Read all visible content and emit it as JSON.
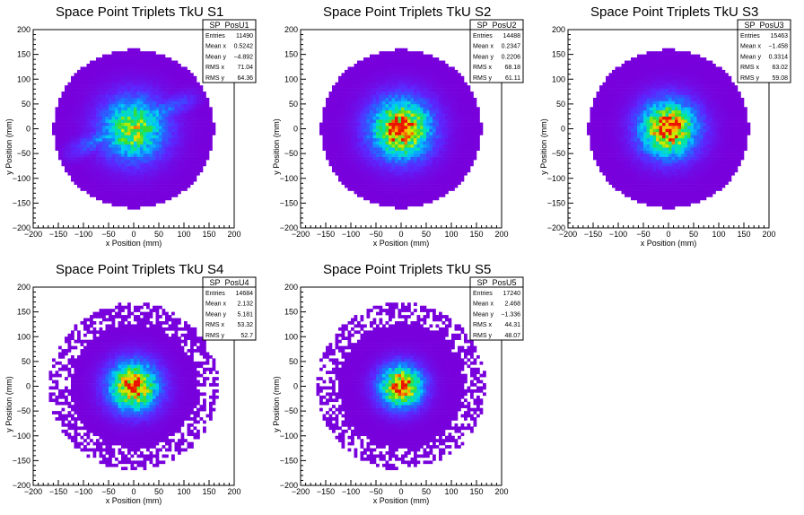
{
  "chart_data": [
    {
      "type": "heatmap",
      "title": "Space Point Triplets TkU S1",
      "xlabel": "x Position (mm)",
      "ylabel": "y Position (mm)",
      "xlim": [
        -200,
        200
      ],
      "ylim": [
        -200,
        200
      ],
      "xticks": [
        "−200",
        "−150",
        "−100",
        "−50",
        "0",
        "50",
        "100",
        "150",
        "200"
      ],
      "yticks": [
        "200",
        "150",
        "100",
        "50",
        "0",
        "−50",
        "−100",
        "−150",
        "−200"
      ],
      "distribution": {
        "radius": 160,
        "sx": 71.04,
        "sy": 64.36,
        "band": true
      },
      "stats": {
        "name": "SP_PosU1",
        "rows": [
          {
            "label": "Entries",
            "value": "11490"
          },
          {
            "label": "Mean x",
            "value": "0.5242"
          },
          {
            "label": "Mean y",
            "value": "−4.892"
          },
          {
            "label": "RMS x",
            "value": "71.04"
          },
          {
            "label": "RMS y",
            "value": "64.36"
          }
        ]
      }
    },
    {
      "type": "heatmap",
      "title": "Space Point Triplets TkU S2",
      "xlabel": "x Position (mm)",
      "ylabel": "y Position (mm)",
      "xlim": [
        -200,
        200
      ],
      "ylim": [
        -200,
        200
      ],
      "xticks": [
        "−200",
        "−150",
        "−100",
        "−50",
        "0",
        "50",
        "100",
        "150",
        "200"
      ],
      "yticks": [
        "200",
        "150",
        "100",
        "50",
        "0",
        "−50",
        "−100",
        "−150",
        "−200"
      ],
      "distribution": {
        "radius": 160,
        "sx": 68.18,
        "sy": 61.11,
        "band": false
      },
      "stats": {
        "name": "SP_PosU2",
        "rows": [
          {
            "label": "Entries",
            "value": "14488"
          },
          {
            "label": "Mean x",
            "value": "0.2347"
          },
          {
            "label": "Mean y",
            "value": "0.2206"
          },
          {
            "label": "RMS x",
            "value": "68.18"
          },
          {
            "label": "RMS y",
            "value": "61.11"
          }
        ]
      }
    },
    {
      "type": "heatmap",
      "title": "Space Point Triplets TkU S3",
      "xlabel": "x Position (mm)",
      "ylabel": "y Position (mm)",
      "xlim": [
        -200,
        200
      ],
      "ylim": [
        -200,
        200
      ],
      "xticks": [
        "−200",
        "−150",
        "−100",
        "−50",
        "0",
        "50",
        "100",
        "150",
        "200"
      ],
      "yticks": [
        "200",
        "150",
        "100",
        "50",
        "0",
        "−50",
        "−100",
        "−150",
        "−200"
      ],
      "distribution": {
        "radius": 160,
        "sx": 63.02,
        "sy": 59.08,
        "band": false
      },
      "stats": {
        "name": "SP_PosU3",
        "rows": [
          {
            "label": "Entries",
            "value": "15463"
          },
          {
            "label": "Mean x",
            "value": "−1.458"
          },
          {
            "label": "Mean y",
            "value": "0.3314"
          },
          {
            "label": "RMS x",
            "value": "63.02"
          },
          {
            "label": "RMS y",
            "value": "59.08"
          }
        ]
      }
    },
    {
      "type": "heatmap",
      "title": "Space Point Triplets TkU S4",
      "xlabel": "x Position (mm)",
      "ylabel": "y Position (mm)",
      "xlim": [
        -200,
        200
      ],
      "ylim": [
        -200,
        200
      ],
      "xticks": [
        "−200",
        "−150",
        "−100",
        "−50",
        "0",
        "50",
        "100",
        "150",
        "200"
      ],
      "yticks": [
        "200",
        "150",
        "100",
        "50",
        "0",
        "−50",
        "−100",
        "−150",
        "−200"
      ],
      "distribution": {
        "radius": 160,
        "sx": 53.32,
        "sy": 52.7,
        "band": false
      },
      "stats": {
        "name": "SP_PosU4",
        "rows": [
          {
            "label": "Entries",
            "value": "14684"
          },
          {
            "label": "Mean x",
            "value": "2.132"
          },
          {
            "label": "Mean y",
            "value": "5.181"
          },
          {
            "label": "RMS x",
            "value": "53.32"
          },
          {
            "label": "RMS y",
            "value": "52.7"
          }
        ]
      }
    },
    {
      "type": "heatmap",
      "title": "Space Point Triplets TkU S5",
      "xlabel": "x Position (mm)",
      "ylabel": "y Position (mm)",
      "xlim": [
        -200,
        200
      ],
      "ylim": [
        -200,
        200
      ],
      "xticks": [
        "−200",
        "−150",
        "−100",
        "−50",
        "0",
        "50",
        "100",
        "150",
        "200"
      ],
      "yticks": [
        "200",
        "150",
        "100",
        "50",
        "0",
        "−50",
        "−100",
        "−150",
        "−200"
      ],
      "distribution": {
        "radius": 160,
        "sx": 44.31,
        "sy": 48.07,
        "band": false
      },
      "stats": {
        "name": "SP_PosU5",
        "rows": [
          {
            "label": "Entries",
            "value": "17240"
          },
          {
            "label": "Mean x",
            "value": "2.468"
          },
          {
            "label": "Mean y",
            "value": "−1.336"
          },
          {
            "label": "RMS x",
            "value": "44.31"
          },
          {
            "label": "RMS y",
            "value": "48.07"
          }
        ]
      }
    }
  ]
}
